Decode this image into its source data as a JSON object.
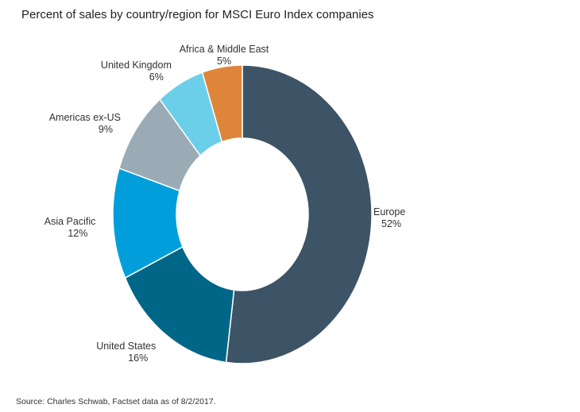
{
  "chart_data": {
    "type": "pie",
    "donut": true,
    "title": "Percent of sales by country/region for MSCI Euro Index companies",
    "slices": [
      {
        "label": "Europe",
        "value": 52,
        "value_label": "52%",
        "color": "#3d5366"
      },
      {
        "label": "United States",
        "value": 16,
        "value_label": "16%",
        "color": "#006688"
      },
      {
        "label": "Asia Pacific",
        "value": 12,
        "value_label": "12%",
        "color": "#009fdb"
      },
      {
        "label": "Americas ex-US",
        "value": 9,
        "value_label": "9%",
        "color": "#9aabb5"
      },
      {
        "label": "United Kingdom",
        "value": 6,
        "value_label": "6%",
        "color": "#6ccfea"
      },
      {
        "label": "Africa & Middle East",
        "value": 5,
        "value_label": "5%",
        "color": "#dd863a"
      }
    ],
    "start_angle": "top",
    "direction": "clockwise",
    "legend": "none"
  },
  "source": "Source: Charles Schwab, Factset data as of 8/2/2017."
}
